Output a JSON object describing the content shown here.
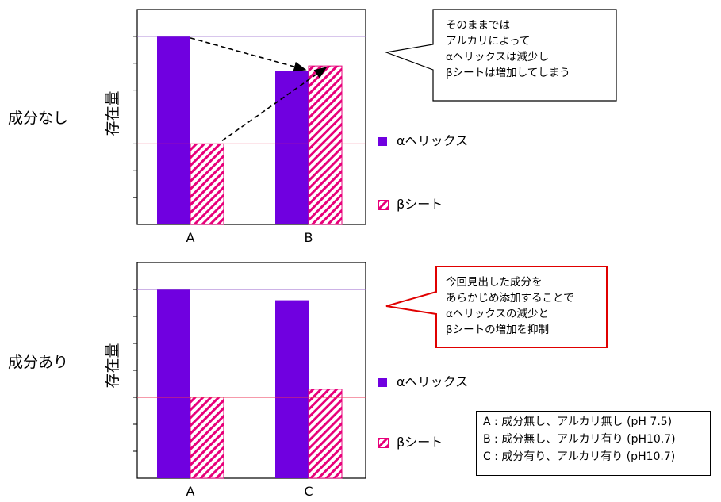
{
  "chart_data": [
    {
      "type": "bar",
      "row_label": "成分なし",
      "ylabel": "存在量",
      "categories": [
        "A",
        "B"
      ],
      "series": [
        {
          "name": "αヘリックス",
          "values": [
            0.7,
            0.57
          ],
          "color": "#7000e0",
          "pattern": "solid"
        },
        {
          "name": "βシート",
          "values": [
            0.3,
            0.59
          ],
          "color": "#e8007a",
          "pattern": "hatch"
        }
      ],
      "ylim": [
        0,
        0.8
      ],
      "reference_lines": [
        {
          "value": 0.7,
          "color": "#9966cc"
        },
        {
          "value": 0.3,
          "color": "#ee3355"
        }
      ],
      "arrows": "dashed arrows from A αヘリックス to B αヘリックス and from A βシート to B βシート",
      "callout": {
        "lines": [
          "そのままでは",
          "アルカリによって",
          "αヘリックスは減少し",
          "βシートは増加してしまう"
        ],
        "border_color": "#000000"
      },
      "legend_placement": "right"
    },
    {
      "type": "bar",
      "row_label": "成分あり",
      "ylabel": "存在量",
      "categories": [
        "A",
        "C"
      ],
      "series": [
        {
          "name": "αヘリックス",
          "values": [
            0.7,
            0.66
          ],
          "color": "#7000e0",
          "pattern": "solid"
        },
        {
          "name": "βシート",
          "values": [
            0.3,
            0.33
          ],
          "color": "#e8007a",
          "pattern": "hatch"
        }
      ],
      "ylim": [
        0,
        0.8
      ],
      "reference_lines": [
        {
          "value": 0.7,
          "color": "#9966cc"
        },
        {
          "value": 0.3,
          "color": "#ee3355"
        }
      ],
      "callout": {
        "lines": [
          "今回見出した成分を",
          "あらかじめ添加することで",
          "αヘリックスの減少と",
          "βシートの増加を抑制"
        ],
        "border_color": "#e00000"
      },
      "legend_placement": "right"
    }
  ],
  "notes": [
    "A : 成分無し、アルカリ無し (pH 7.5)",
    "B : 成分無し、アルカリ有り (pH10.7)",
    "C : 成分有り、アルカリ有り (pH10.7)"
  ]
}
